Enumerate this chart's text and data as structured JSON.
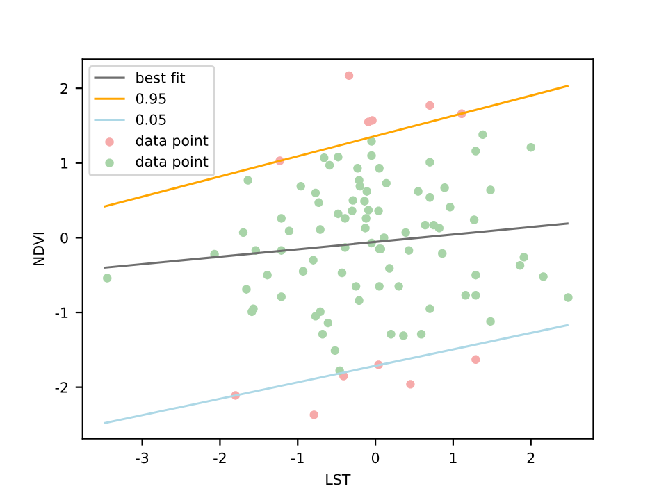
{
  "chart_data": {
    "type": "scatter",
    "xlabel": "LST",
    "ylabel": "NDVI",
    "xlim": [
      -3.77,
      2.8
    ],
    "ylim": [
      -2.69,
      2.39
    ],
    "xticks": [
      -3,
      -2,
      -1,
      0,
      1,
      2
    ],
    "yticks": [
      -2,
      -1,
      0,
      1,
      2
    ],
    "grid": false,
    "legend": "top left",
    "series": [
      {
        "name": "best fit",
        "type": "line",
        "color": "#6e6e6e",
        "x": [
          -3.48,
          2.47
        ],
        "values": [
          -0.4,
          0.19
        ]
      },
      {
        "name": "0.95",
        "type": "line",
        "color": "#ffa500",
        "x": [
          -3.48,
          2.47
        ],
        "values": [
          0.42,
          2.03
        ]
      },
      {
        "name": "0.05",
        "type": "line",
        "color": "#add8e6",
        "x": [
          -3.48,
          2.47
        ],
        "values": [
          -2.48,
          -1.17
        ]
      },
      {
        "name": "data point",
        "marker": "circle",
        "color": "#f6aaaa",
        "x": [
          -0.34,
          0.7,
          -0.09,
          -0.04,
          1.11,
          -1.23,
          -1.8,
          -0.79,
          -0.41,
          0.04,
          0.45,
          1.29
        ],
        "values": [
          2.17,
          1.77,
          1.55,
          1.57,
          1.66,
          1.03,
          -2.11,
          -2.37,
          -1.85,
          -1.7,
          -1.96,
          -1.63
        ]
      },
      {
        "name": "data point",
        "marker": "circle",
        "color": "#a8d4a8",
        "x": [
          -0.05,
          -0.66,
          -0.48,
          -0.59,
          -0.05,
          -0.23,
          -0.21,
          -0.2,
          0.05,
          -1.64,
          -0.96,
          -0.77,
          -0.73,
          -0.11,
          -0.29,
          -0.09,
          -0.48,
          -0.39,
          -0.3,
          -0.12,
          0.04,
          -1.21,
          -1.7,
          -1.11,
          -0.71,
          -0.13,
          -2.07,
          -1.54,
          -1.21,
          -0.39,
          -0.05,
          0.05,
          -3.45,
          -1.66,
          -1.39,
          -0.93,
          -0.8,
          -0.43,
          -1.21,
          -0.25,
          -0.21,
          0.05,
          -1.57,
          -1.59,
          -0.77,
          -0.71,
          -0.61,
          -0.68,
          -0.52,
          -0.46,
          1.38,
          1.29,
          2.0,
          0.7,
          0.14,
          0.55,
          0.7,
          0.89,
          1.48,
          -0.14,
          0.96,
          0.64,
          0.75,
          0.82,
          1.27,
          0.39,
          0.11,
          0.07,
          0.43,
          0.86,
          0.18,
          0.3,
          1.91,
          1.86,
          1.29,
          2.16,
          1.16,
          1.29,
          2.48,
          0.7,
          1.48,
          0.2,
          0.36,
          0.59
        ],
        "values": [
          1.29,
          1.07,
          1.08,
          0.97,
          1.1,
          0.93,
          0.77,
          0.69,
          0.93,
          0.77,
          0.69,
          0.6,
          0.47,
          0.62,
          0.5,
          0.37,
          0.32,
          0.26,
          0.36,
          0.26,
          0.36,
          0.26,
          0.07,
          0.09,
          0.11,
          0.13,
          -0.22,
          -0.17,
          -0.17,
          -0.13,
          -0.07,
          -0.15,
          -0.54,
          -0.69,
          -0.5,
          -0.45,
          -0.3,
          -0.47,
          -0.79,
          -0.65,
          -0.84,
          -0.65,
          -0.95,
          -0.99,
          -1.05,
          -0.99,
          -1.14,
          -1.29,
          -1.51,
          -1.78,
          1.38,
          1.16,
          1.21,
          1.01,
          0.73,
          0.62,
          0.54,
          0.67,
          0.64,
          0.49,
          0.41,
          0.17,
          0.17,
          0.13,
          0.24,
          0.07,
          0.0,
          -0.15,
          -0.17,
          -0.21,
          -0.41,
          -0.65,
          -0.26,
          -0.37,
          -0.5,
          -0.52,
          -0.77,
          -0.77,
          -0.8,
          -0.95,
          -1.12,
          -1.29,
          -1.31,
          -1.29
        ]
      }
    ]
  }
}
